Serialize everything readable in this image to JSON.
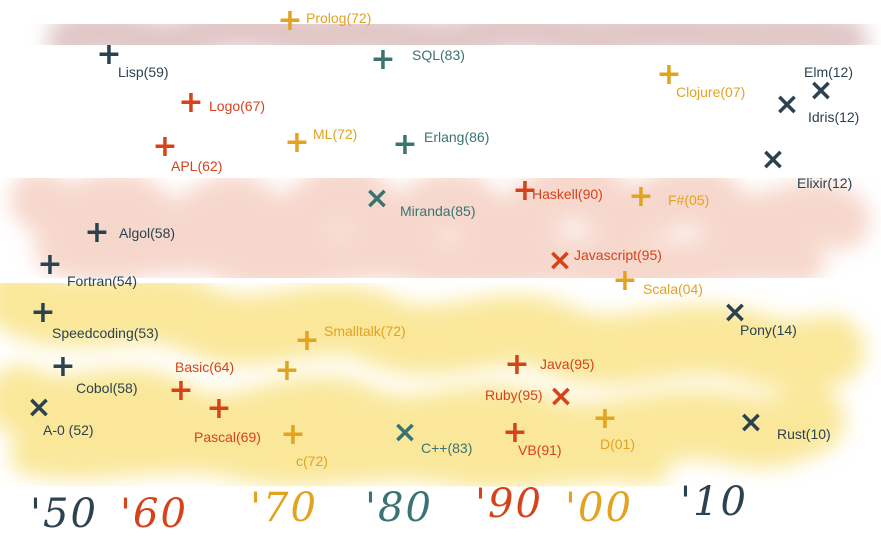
{
  "colors": {
    "navy": "#2c4250",
    "red": "#d6431a",
    "orange": "#e3a220",
    "teal": "#3b7373",
    "band_top": "#c48f8f",
    "band_mid": "#eeb09a",
    "band_low": "#f6d54a"
  },
  "languages": [
    {
      "id": "prolog",
      "label": "Prolog(72)",
      "color": "orange",
      "mark": "+"
    },
    {
      "id": "sql",
      "label": "SQL(83)",
      "color": "teal",
      "mark": "+"
    },
    {
      "id": "lisp",
      "label": "Lisp(59)",
      "color": "navy",
      "mark": "+"
    },
    {
      "id": "clojure",
      "label": "Clojure(07)",
      "color": "orange",
      "mark": "+"
    },
    {
      "id": "elm",
      "label": "Elm(12)",
      "color": "navy",
      "mark": "×"
    },
    {
      "id": "idris",
      "label": "Idris(12)",
      "color": "navy",
      "mark": "×"
    },
    {
      "id": "logo",
      "label": "Logo(67)",
      "color": "red",
      "mark": "+"
    },
    {
      "id": "ml",
      "label": "ML(72)",
      "color": "orange",
      "mark": "+"
    },
    {
      "id": "erlang",
      "label": "Erlang(86)",
      "color": "teal",
      "mark": "+"
    },
    {
      "id": "apl",
      "label": "APL(62)",
      "color": "red",
      "mark": "+"
    },
    {
      "id": "elixir",
      "label": "Elixir(12)",
      "color": "navy",
      "mark": "×"
    },
    {
      "id": "haskell",
      "label": "Haskell(90)",
      "color": "red",
      "mark": "+"
    },
    {
      "id": "fsharp",
      "label": "F#(05)",
      "color": "orange",
      "mark": "+"
    },
    {
      "id": "miranda",
      "label": "Miranda(85)",
      "color": "teal",
      "mark": "×"
    },
    {
      "id": "algol",
      "label": "Algol(58)",
      "color": "navy",
      "mark": "+"
    },
    {
      "id": "javascript",
      "label": "Javascript(95)",
      "color": "red",
      "mark": "×"
    },
    {
      "id": "fortran",
      "label": "Fortran(54)",
      "color": "navy",
      "mark": "+"
    },
    {
      "id": "scala",
      "label": "Scala(04)",
      "color": "orange",
      "mark": "+"
    },
    {
      "id": "speedcoding",
      "label": "Speedcoding(53)",
      "color": "navy",
      "mark": "+"
    },
    {
      "id": "smalltalk",
      "label": "Smalltalk(72)",
      "color": "orange",
      "mark": "+"
    },
    {
      "id": "pony",
      "label": "Pony(14)",
      "color": "navy",
      "mark": "×"
    },
    {
      "id": "basic",
      "label": "Basic(64)",
      "color": "red",
      "mark": "+"
    },
    {
      "id": "cobol",
      "label": "Cobol(58)",
      "color": "navy",
      "mark": "+"
    },
    {
      "id": "java",
      "label": "Java(95)",
      "color": "red",
      "mark": "+"
    },
    {
      "id": "ruby",
      "label": "Ruby(95)",
      "color": "red",
      "mark": "×"
    },
    {
      "id": "a0",
      "label": "A-0 (52)",
      "color": "navy",
      "mark": "×"
    },
    {
      "id": "pascal",
      "label": "Pascal(69)",
      "color": "red",
      "mark": "+"
    },
    {
      "id": "cpp",
      "label": "C++(83)",
      "color": "teal",
      "mark": "×"
    },
    {
      "id": "vb",
      "label": "VB(91)",
      "color": "red",
      "mark": "+"
    },
    {
      "id": "d",
      "label": "D(01)",
      "color": "orange",
      "mark": "+"
    },
    {
      "id": "rust",
      "label": "Rust(10)",
      "color": "navy",
      "mark": "×"
    },
    {
      "id": "c",
      "label": "c(72)",
      "color": "orange",
      "mark": "+"
    }
  ],
  "decades": [
    {
      "id": "50s",
      "label": "'50",
      "color": "navy"
    },
    {
      "id": "60s",
      "label": "'60",
      "color": "red"
    },
    {
      "id": "70s",
      "label": "'70",
      "color": "orange"
    },
    {
      "id": "80s",
      "label": "'80",
      "color": "teal"
    },
    {
      "id": "90s",
      "label": "'90",
      "color": "red"
    },
    {
      "id": "00s",
      "label": "'00",
      "color": "orange"
    },
    {
      "id": "10s",
      "label": "'10",
      "color": "navy"
    }
  ]
}
